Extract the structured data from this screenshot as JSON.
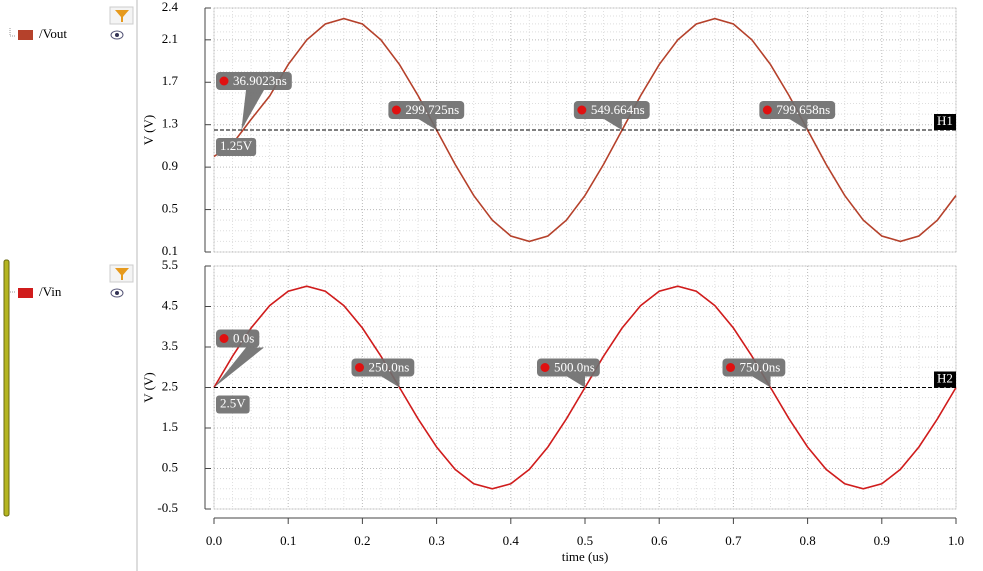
{
  "chart_data": [
    {
      "type": "line",
      "ylabel": "V (V)",
      "x": [
        0,
        0.025,
        0.05,
        0.075,
        0.1,
        0.125,
        0.15,
        0.175,
        0.2,
        0.225,
        0.25,
        0.275,
        0.3,
        0.325,
        0.35,
        0.375,
        0.4,
        0.425,
        0.45,
        0.475,
        0.5,
        0.525,
        0.55,
        0.575,
        0.6,
        0.625,
        0.65,
        0.675,
        0.7,
        0.725,
        0.75,
        0.775,
        0.8,
        0.825,
        0.85,
        0.875,
        0.9,
        0.925,
        0.95,
        0.975,
        1.0
      ],
      "xlim": [
        0,
        1
      ],
      "ylim": [
        0.1,
        2.4
      ],
      "yticks": [
        0.1,
        0.5,
        0.9,
        1.3,
        1.7,
        2.1,
        2.4
      ],
      "grid": true,
      "series": [
        {
          "name": "/Vout",
          "color": "#b5412b",
          "values": [
            1.0,
            1.12,
            1.35,
            1.57,
            1.867,
            2.099,
            2.249,
            2.3,
            2.249,
            2.099,
            1.867,
            1.574,
            1.25,
            0.926,
            0.633,
            0.401,
            0.251,
            0.2,
            0.251,
            0.401,
            0.633,
            0.926,
            1.25,
            1.574,
            1.867,
            2.099,
            2.249,
            2.3,
            2.249,
            2.099,
            1.867,
            1.574,
            1.25,
            0.926,
            0.633,
            0.401,
            0.251,
            0.2,
            0.251,
            0.401,
            0.633
          ]
        }
      ],
      "hline": {
        "label": "H1",
        "value": 1.25,
        "value_label": "1.25V"
      },
      "markers": [
        {
          "x": 0.0369023,
          "label": "36.9023ns"
        },
        {
          "x": 0.299725,
          "label": "299.725ns"
        },
        {
          "x": 0.549664,
          "label": "549.664ns"
        },
        {
          "x": 0.799658,
          "label": "799.658ns"
        }
      ]
    },
    {
      "type": "line",
      "ylabel": "V (V)",
      "xlabel": "time (us)",
      "x": [
        0,
        0.025,
        0.05,
        0.075,
        0.1,
        0.125,
        0.15,
        0.175,
        0.2,
        0.225,
        0.25,
        0.275,
        0.3,
        0.325,
        0.35,
        0.375,
        0.4,
        0.425,
        0.45,
        0.475,
        0.5,
        0.525,
        0.55,
        0.575,
        0.6,
        0.625,
        0.65,
        0.675,
        0.7,
        0.725,
        0.75,
        0.775,
        0.8,
        0.825,
        0.85,
        0.875,
        0.9,
        0.925,
        0.95,
        0.975,
        1.0
      ],
      "xlim": [
        0,
        1
      ],
      "xticks": [
        {
          "value": 0,
          "label": "0.0"
        },
        0.1,
        0.2,
        0.3,
        0.4,
        0.5,
        0.6,
        0.7,
        0.8,
        0.9,
        {
          "value": 1,
          "label": "1.0"
        }
      ],
      "ylim": [
        -0.5,
        5.5
      ],
      "yticks": [
        -0.5,
        0.5,
        1.5,
        2.5,
        3.5,
        4.5,
        5.5
      ],
      "grid": true,
      "series": [
        {
          "name": "/Vin",
          "color": "#d01c1c",
          "values": [
            2.5,
            3.273,
            3.969,
            4.523,
            4.878,
            5.0,
            4.878,
            4.523,
            3.969,
            3.273,
            2.5,
            1.727,
            1.031,
            0.477,
            0.122,
            0,
            0.122,
            0.477,
            1.031,
            1.727,
            2.5,
            3.273,
            3.969,
            4.523,
            4.878,
            5.0,
            4.878,
            4.523,
            3.969,
            3.273,
            2.5,
            1.727,
            1.031,
            0.477,
            0.122,
            0,
            0.122,
            0.477,
            1.031,
            1.727,
            2.5
          ]
        }
      ],
      "hline": {
        "label": "H2",
        "value": 2.5,
        "value_label": "2.5V"
      },
      "markers": [
        {
          "x": 0,
          "label": "0.0s"
        },
        {
          "x": 0.25,
          "label": "250.0ns"
        },
        {
          "x": 0.5,
          "label": "500.0ns"
        },
        {
          "x": 0.75,
          "label": "750.0ns"
        }
      ]
    }
  ]
}
